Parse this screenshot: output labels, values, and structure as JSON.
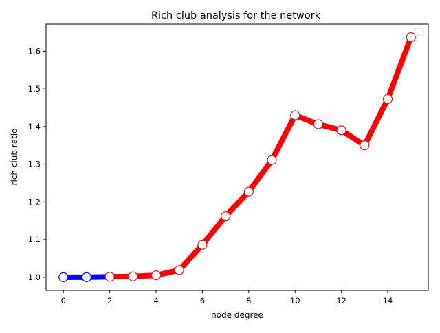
{
  "chart_data": {
    "type": "line",
    "title": "Rich club analysis for the network",
    "xlabel": "node degree",
    "ylabel": "rich club ratio",
    "xlim": [
      -0.75,
      15.75
    ],
    "ylim": [
      0.965,
      1.672
    ],
    "xticks": [
      0,
      2,
      4,
      6,
      8,
      10,
      12,
      14
    ],
    "yticks": [
      1.0,
      1.1,
      1.2,
      1.3,
      1.4,
      1.5,
      1.6
    ],
    "xtick_labels": [
      "0",
      "2",
      "4",
      "6",
      "8",
      "10",
      "12",
      "14"
    ],
    "ytick_labels": [
      "1.0",
      "1.1",
      "1.2",
      "1.3",
      "1.4",
      "1.5",
      "1.6"
    ],
    "grid": false,
    "legend": "top-right (empty)",
    "series": [
      {
        "color": "#0000ff",
        "marker_edge": "#0000ff",
        "x": [
          0,
          1,
          2
        ],
        "y": [
          1.0,
          1.0,
          1.001
        ]
      },
      {
        "color": "#ff0000",
        "marker_edge": "#cc1a1a",
        "x": [
          2,
          3,
          4,
          5,
          6,
          7,
          8,
          9,
          10,
          11,
          12,
          13,
          14,
          15
        ],
        "y": [
          1.001,
          1.002,
          1.005,
          1.019,
          1.086,
          1.162,
          1.227,
          1.311,
          1.43,
          1.406,
          1.39,
          1.35,
          1.473,
          1.637
        ]
      }
    ]
  }
}
